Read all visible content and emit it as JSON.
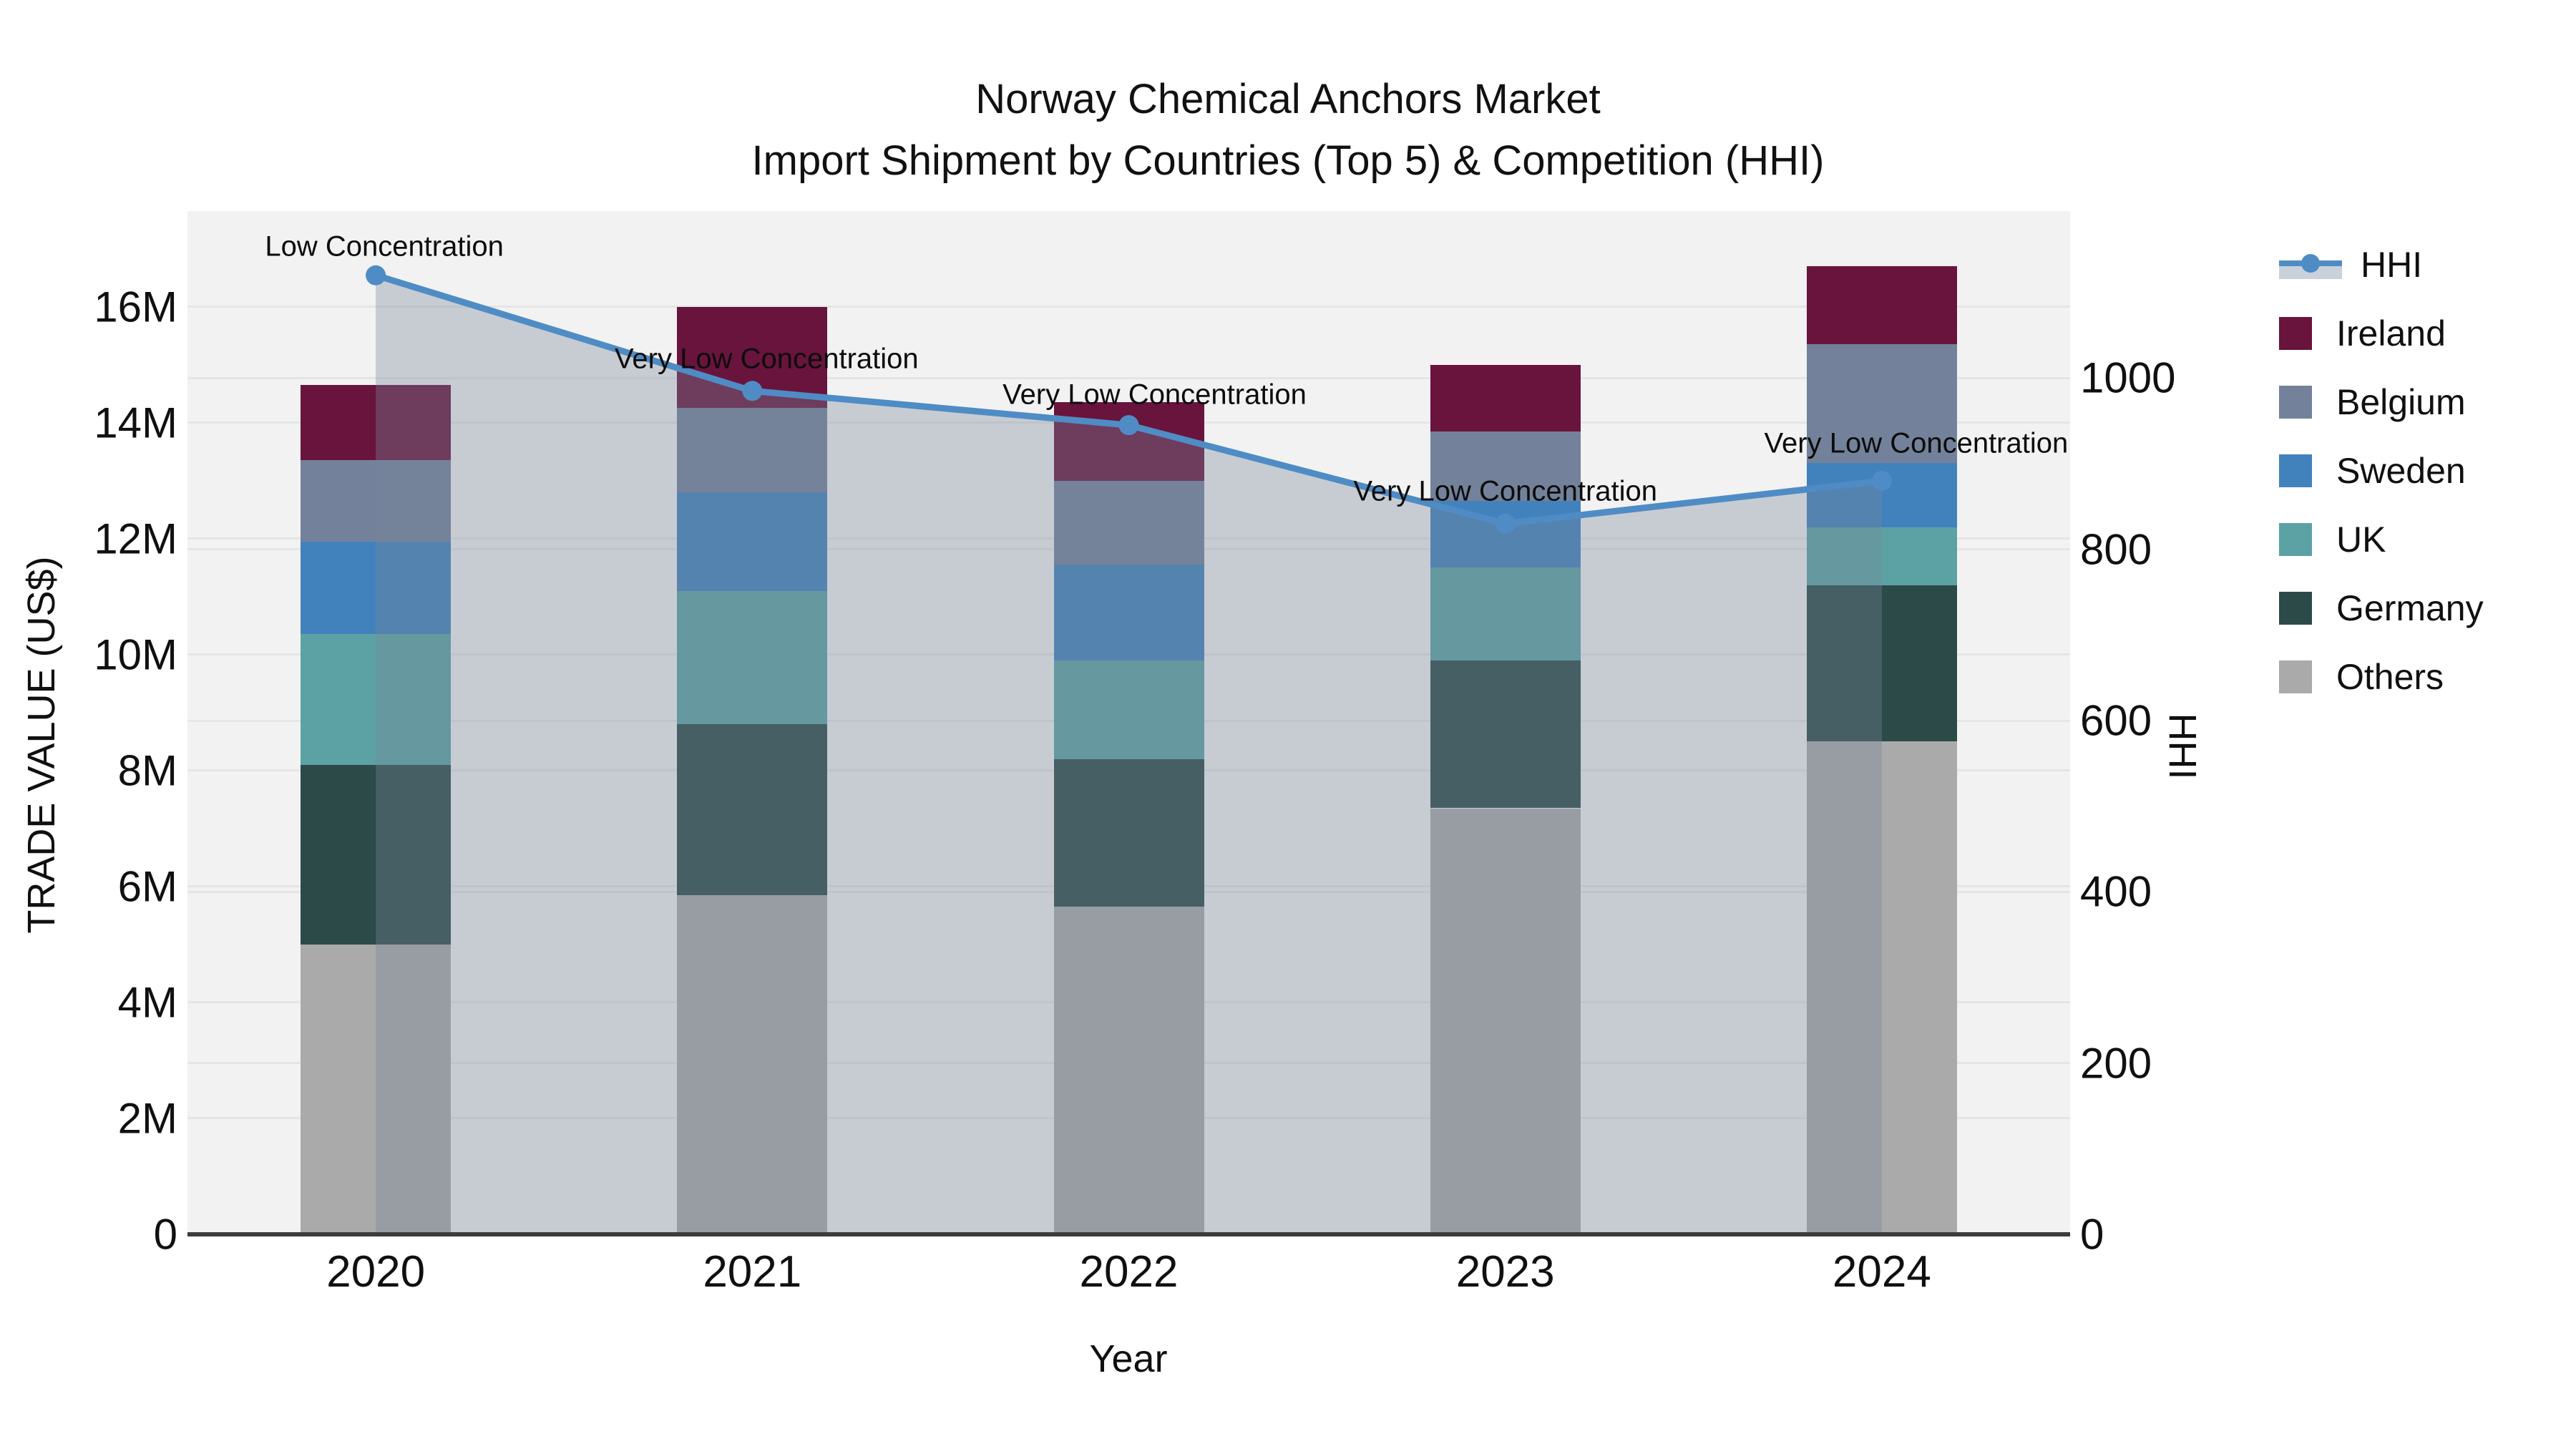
{
  "title": {
    "line1": "Norway Chemical Anchors Market",
    "line2": "Import Shipment by Countries (Top 5) & Competition (HHI)"
  },
  "axes": {
    "x_title": "Year",
    "y_left_title": "TRADE VALUE (US$)",
    "y_right_title": "HHI",
    "y_left_ticks": [
      {
        "label": "0",
        "value": 0
      },
      {
        "label": "2M",
        "value": 2
      },
      {
        "label": "4M",
        "value": 4
      },
      {
        "label": "6M",
        "value": 6
      },
      {
        "label": "8M",
        "value": 8
      },
      {
        "label": "10M",
        "value": 10
      },
      {
        "label": "12M",
        "value": 12
      },
      {
        "label": "14M",
        "value": 14
      },
      {
        "label": "16M",
        "value": 16
      }
    ],
    "y_right_ticks": [
      {
        "label": "0",
        "value": 0
      },
      {
        "label": "200",
        "value": 200
      },
      {
        "label": "400",
        "value": 400
      },
      {
        "label": "600",
        "value": 600
      },
      {
        "label": "800",
        "value": 800
      },
      {
        "label": "1000",
        "value": 1000
      }
    ]
  },
  "legend": [
    {
      "label": "HHI",
      "glyph": "line",
      "color": "#4f8cc5",
      "band": "#c9d1db"
    },
    {
      "label": "Ireland",
      "glyph": "square",
      "color": "#69143c"
    },
    {
      "label": "Belgium",
      "glyph": "square",
      "color": "#73829a"
    },
    {
      "label": "Sweden",
      "glyph": "square",
      "color": "#4282bc"
    },
    {
      "label": "UK",
      "glyph": "square",
      "color": "#5ca2a4"
    },
    {
      "label": "Germany",
      "glyph": "square",
      "color": "#2c4a48"
    },
    {
      "label": "Others",
      "glyph": "square",
      "color": "#aaaaaa"
    }
  ],
  "chart_data": {
    "type": "bar",
    "subtype": "stacked-bars-with-line",
    "title": "Norway Chemical Anchors Market — Import Shipment by Countries (Top 5) & Competition (HHI)",
    "xlabel": "Year",
    "ylabel_left": "TRADE VALUE (US$)",
    "ylabel_right": "HHI",
    "categories": [
      "2020",
      "2021",
      "2022",
      "2023",
      "2024"
    ],
    "values_unit": "million US$",
    "series": [
      {
        "name": "Others",
        "color": "#aaaaaa",
        "values": [
          5.0,
          5.85,
          5.65,
          7.35,
          8.5
        ]
      },
      {
        "name": "Germany",
        "color": "#2c4a48",
        "values": [
          3.1,
          2.95,
          2.55,
          2.55,
          2.7
        ]
      },
      {
        "name": "UK",
        "color": "#5ca2a4",
        "values": [
          2.25,
          2.3,
          1.7,
          1.6,
          1.0
        ]
      },
      {
        "name": "Sweden",
        "color": "#4282bc",
        "values": [
          1.6,
          1.7,
          1.65,
          1.15,
          1.1
        ]
      },
      {
        "name": "Belgium",
        "color": "#73829a",
        "values": [
          1.4,
          1.45,
          1.45,
          1.2,
          2.05
        ]
      },
      {
        "name": "Ireland",
        "color": "#69143c",
        "values": [
          1.3,
          1.75,
          1.35,
          1.15,
          1.35
        ]
      }
    ],
    "bar_totals": [
      14.65,
      16.0,
      14.35,
      15.0,
      16.7
    ],
    "line_series": {
      "name": "HHI",
      "color": "#4f8cc5",
      "fill": "tozeroy",
      "fill_color": "rgba(120,135,155,0.35)",
      "values": [
        1120,
        985,
        945,
        830,
        880
      ]
    },
    "annotations": [
      {
        "category": "2020",
        "text": "Low Concentration"
      },
      {
        "category": "2021",
        "text": "Very Low Concentration"
      },
      {
        "category": "2022",
        "text": "Very Low Concentration"
      },
      {
        "category": "2023",
        "text": "Very Low Concentration"
      },
      {
        "category": "2024",
        "text": "Very Low Concentration"
      }
    ],
    "ylim_left": [
      0,
      17.65
    ],
    "ylim_right": [
      0,
      1195
    ],
    "grid": true,
    "legend_position": "right",
    "plot_bg": "#f2f2f2"
  }
}
